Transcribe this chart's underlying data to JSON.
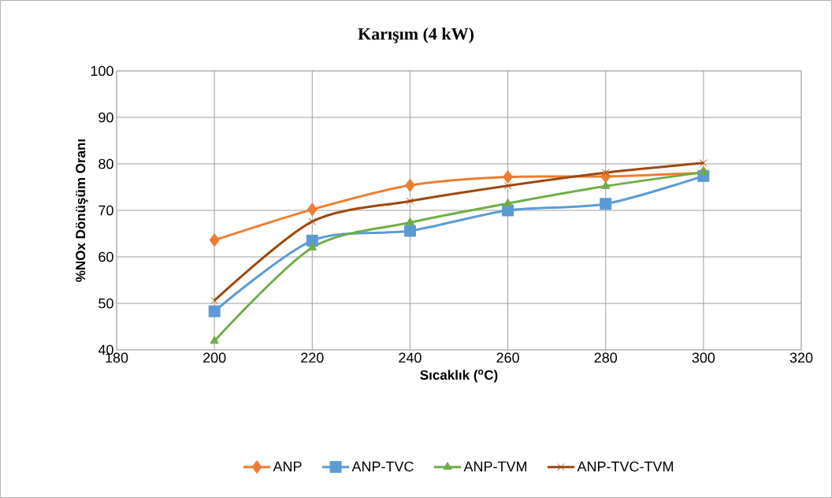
{
  "chart_data": {
    "type": "line",
    "title": "Karışım (4 kW)",
    "xlabel": "Sıcaklık ($^{o}$C)",
    "ylabel": "%NOx Dönüşüm Oranı",
    "x": [
      200,
      220,
      240,
      260,
      280,
      300
    ],
    "series": [
      {
        "name": "ANP",
        "color": "#ed7d31",
        "marker": "diamond",
        "values": [
          63.6,
          70.2,
          75.4,
          77.2,
          77.3,
          78.1
        ]
      },
      {
        "name": "ANP-TVC",
        "color": "#5b9bd5",
        "marker": "square",
        "values": [
          48.3,
          63.5,
          65.6,
          70.0,
          71.4,
          77.4
        ]
      },
      {
        "name": "ANP-TVM",
        "color": "#70ad47",
        "marker": "triangle",
        "values": [
          41.9,
          62.0,
          67.4,
          71.5,
          75.2,
          78.2
        ]
      },
      {
        "name": "ANP-TVC-TVM",
        "color": "#9e480e",
        "marker": "cross",
        "values": [
          50.6,
          67.6,
          72.0,
          75.3,
          78.1,
          80.2
        ]
      }
    ],
    "xlim": [
      180,
      320
    ],
    "xticks": [
      180,
      200,
      220,
      240,
      260,
      280,
      300,
      320
    ],
    "ylim": [
      40,
      100
    ],
    "yticks": [
      40,
      50,
      60,
      70,
      80,
      90,
      100
    ],
    "grid": true,
    "legend": "bottom"
  }
}
